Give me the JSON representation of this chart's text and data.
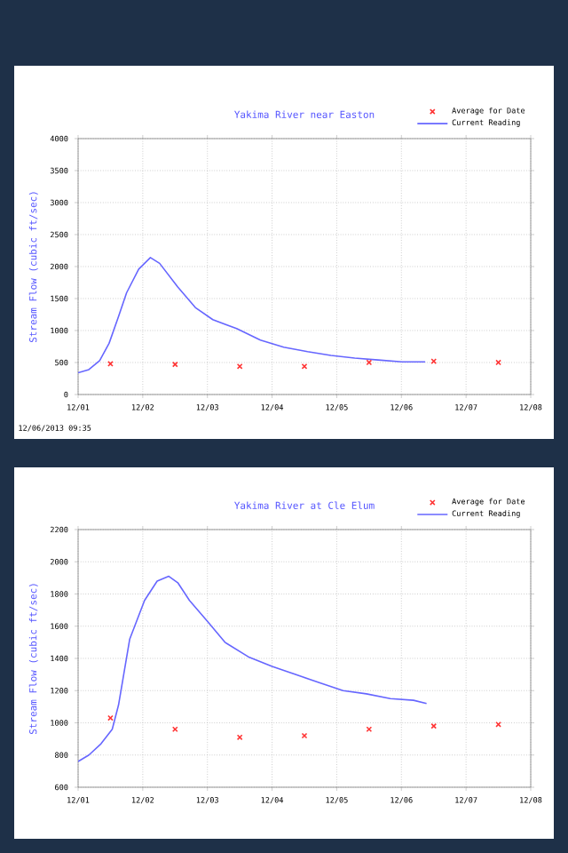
{
  "chart_data": [
    {
      "type": "line",
      "title": "Yakima River near Easton",
      "ylabel": "Stream Flow (cubic ft/sec)",
      "xlim": [
        "2013-12-01",
        "2013-12-08"
      ],
      "xticks": [
        {
          "value": "2013-12-01",
          "label": "12/01"
        },
        {
          "value": "2013-12-02",
          "label": "12/02"
        },
        {
          "value": "2013-12-03",
          "label": "12/03"
        },
        {
          "value": "2013-12-04",
          "label": "12/04"
        },
        {
          "value": "2013-12-05",
          "label": "12/05"
        },
        {
          "value": "2013-12-06",
          "label": "12/06"
        },
        {
          "value": "2013-12-07",
          "label": "12/07"
        },
        {
          "value": "2013-12-08",
          "label": "12/08"
        }
      ],
      "ylim": [
        0,
        4000
      ],
      "yticks": [
        0,
        500,
        1000,
        1500,
        2000,
        2500,
        3000,
        3500,
        4000
      ],
      "grid": true,
      "legend": "top right",
      "annotations": [
        "12/06/2013 09:35"
      ],
      "series": [
        {
          "name": "Average for Date",
          "type": "scatter",
          "marker": "cross",
          "color": "#ff3333",
          "x": [
            "2013-12-01T12:00",
            "2013-12-02T12:00",
            "2013-12-03T12:00",
            "2013-12-04T12:00",
            "2013-12-05T12:00",
            "2013-12-06T12:00",
            "2013-12-07T12:00"
          ],
          "values": [
            480,
            470,
            440,
            440,
            500,
            520,
            500
          ]
        },
        {
          "name": "Current Reading",
          "color": "#6666ff",
          "x": [
            "2013-12-01T00:00",
            "2013-12-01T04:00",
            "2013-12-01T08:00",
            "2013-12-01T11:30",
            "2013-12-01T15:00",
            "2013-12-01T18:00",
            "2013-12-01T22:30",
            "2013-12-02T02:50",
            "2013-12-02T06:15",
            "2013-12-02T13:00",
            "2013-12-02T19:30",
            "2013-12-03T02:00",
            "2013-12-03T10:50",
            "2013-12-03T19:40",
            "2013-12-04T04:20",
            "2013-12-04T13:10",
            "2013-12-04T21:50",
            "2013-12-05T06:40",
            "2013-12-05T15:20",
            "2013-12-06T00:15",
            "2013-12-06T08:50"
          ],
          "values": [
            340,
            390,
            530,
            800,
            1220,
            1590,
            1960,
            2140,
            2050,
            1680,
            1360,
            1170,
            1030,
            850,
            740,
            670,
            610,
            570,
            540,
            510,
            510
          ]
        }
      ]
    },
    {
      "type": "line",
      "title": "Yakima River at Cle Elum",
      "ylabel": "Stream Flow (cubic ft/sec)",
      "xlim": [
        "2013-12-01",
        "2013-12-08"
      ],
      "xticks": [
        {
          "value": "2013-12-01",
          "label": "12/01"
        },
        {
          "value": "2013-12-02",
          "label": "12/02"
        },
        {
          "value": "2013-12-03",
          "label": "12/03"
        },
        {
          "value": "2013-12-04",
          "label": "12/04"
        },
        {
          "value": "2013-12-05",
          "label": "12/05"
        },
        {
          "value": "2013-12-06",
          "label": "12/06"
        },
        {
          "value": "2013-12-07",
          "label": "12/07"
        },
        {
          "value": "2013-12-08",
          "label": "12/08"
        }
      ],
      "ylim": [
        600,
        2200
      ],
      "yticks": [
        600,
        800,
        1000,
        1200,
        1400,
        1600,
        1800,
        2000,
        2200
      ],
      "grid": true,
      "legend": "top right",
      "series": [
        {
          "name": "Average for Date",
          "type": "scatter",
          "marker": "cross",
          "color": "#ff3333",
          "x": [
            "2013-12-01T12:00",
            "2013-12-02T12:00",
            "2013-12-03T12:00",
            "2013-12-04T12:00",
            "2013-12-05T12:00",
            "2013-12-06T12:00",
            "2013-12-07T12:00"
          ],
          "values": [
            1030,
            960,
            910,
            920,
            960,
            980,
            990
          ]
        },
        {
          "name": "Current Reading",
          "color": "#6666ff",
          "x": [
            "2013-12-01T00:00",
            "2013-12-01T04:00",
            "2013-12-01T08:30",
            "2013-12-01T12:40",
            "2013-12-01T15:00",
            "2013-12-01T19:10",
            "2013-12-02T00:40",
            "2013-12-02T05:20",
            "2013-12-02T09:40",
            "2013-12-02T13:00",
            "2013-12-02T17:20",
            "2013-12-03T00:00",
            "2013-12-03T06:30",
            "2013-12-03T15:10",
            "2013-12-04T00:00",
            "2013-12-04T08:40",
            "2013-12-04T17:30",
            "2013-12-05T02:20",
            "2013-12-05T11:00",
            "2013-12-05T19:55",
            "2013-12-06T04:30",
            "2013-12-06T09:20"
          ],
          "values": [
            760,
            800,
            870,
            960,
            1110,
            1520,
            1760,
            1880,
            1910,
            1870,
            1760,
            1630,
            1500,
            1410,
            1350,
            1300,
            1250,
            1200,
            1180,
            1150,
            1140,
            1120
          ]
        }
      ]
    }
  ]
}
